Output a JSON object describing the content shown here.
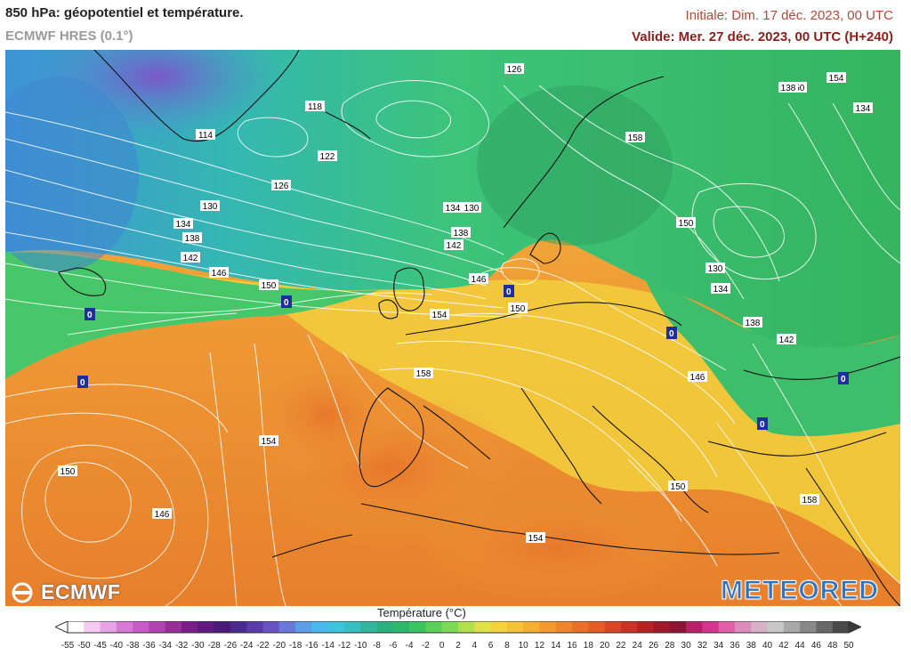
{
  "header": {
    "title": "850 hPa: géopotentiel et température.",
    "model": "ECMWF HRES (0.1°)",
    "initial": "Initiale: Dim. 17 déc. 2023, 00 UTC",
    "valid": "Valide: Mer. 27 déc. 2023, 00 UTC (H+240)"
  },
  "logos": {
    "left": "ECMWF",
    "right": "METEORED"
  },
  "map": {
    "contour_labels": [
      "126",
      "118",
      "114",
      "122",
      "126",
      "130",
      "134",
      "138",
      "142",
      "146",
      "150",
      "134",
      "130",
      "138",
      "142",
      "146",
      "150",
      "154",
      "158",
      "154",
      "150",
      "146",
      "150",
      "154",
      "158",
      "158",
      "150",
      "130",
      "134",
      "138",
      "142",
      "146",
      "150",
      "154",
      "134",
      "138",
      "142"
    ],
    "zero_labels": [
      "0",
      "0",
      "0",
      "0",
      "0",
      "0",
      "0",
      "0"
    ],
    "colors": {
      "cold_blue": "#3d86c9",
      "teal": "#2fb59a",
      "green": "#3fc66c",
      "yellow": "#f2d43a",
      "orange": "#ef9a34",
      "dark_orange": "#e2752a",
      "contour": "#ffffff",
      "coast": "#111111"
    }
  },
  "legend": {
    "title": "Température (°C)",
    "ticks": [
      "-55",
      "-50",
      "-45",
      "-40",
      "-38",
      "-36",
      "-34",
      "-32",
      "-30",
      "-28",
      "-26",
      "-24",
      "-22",
      "-20",
      "-18",
      "-16",
      "-14",
      "-12",
      "-10",
      "-8",
      "-6",
      "-4",
      "-2",
      "0",
      "2",
      "4",
      "6",
      "8",
      "10",
      "12",
      "14",
      "16",
      "18",
      "20",
      "22",
      "24",
      "26",
      "28",
      "30",
      "32",
      "34",
      "36",
      "38",
      "40",
      "42",
      "44",
      "46",
      "48",
      "50"
    ],
    "colors": [
      "#ffffff",
      "#f4c9f2",
      "#e7a3e5",
      "#d77ad6",
      "#c85cc7",
      "#b043b0",
      "#963096",
      "#7a1f88",
      "#5e1a7c",
      "#4a1a78",
      "#4b2a8e",
      "#5a3ca8",
      "#6a52c2",
      "#6a78d8",
      "#5e9ee6",
      "#4cb8ec",
      "#3fc4dc",
      "#39bfbf",
      "#35b59e",
      "#2fae80",
      "#2fb76c",
      "#3cc462",
      "#5ccf5a",
      "#7ed956",
      "#b2df4e",
      "#dfe04a",
      "#f3d43f",
      "#f5c33a",
      "#f4b035",
      "#f29a31",
      "#ee852e",
      "#e9712b",
      "#e35d29",
      "#d94727",
      "#c93426",
      "#b42323",
      "#9e1a2a",
      "#8a1533",
      "#b8206a",
      "#d4368f",
      "#e060a8",
      "#dd8cbb",
      "#d8b0c8",
      "#c8c8c8",
      "#a8a8a8",
      "#888888",
      "#686868",
      "#4a4a4a"
    ]
  }
}
